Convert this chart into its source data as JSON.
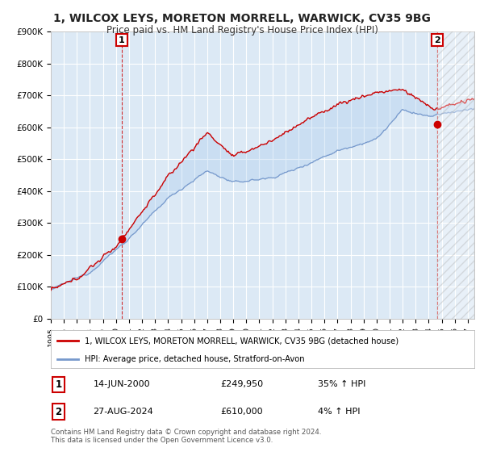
{
  "title": "1, WILCOX LEYS, MORETON MORRELL, WARWICK, CV35 9BG",
  "subtitle": "Price paid vs. HM Land Registry's House Price Index (HPI)",
  "ylim": [
    0,
    900000
  ],
  "yticks": [
    0,
    100000,
    200000,
    300000,
    400000,
    500000,
    600000,
    700000,
    800000,
    900000
  ],
  "ytick_labels": [
    "£0",
    "£100K",
    "£200K",
    "£300K",
    "£400K",
    "£500K",
    "£600K",
    "£700K",
    "£800K",
    "£900K"
  ],
  "xlim_start": 1995.0,
  "xlim_end": 2027.5,
  "sale1_date": 2000.45,
  "sale1_price": 249950,
  "sale1_label": "1",
  "sale2_date": 2024.65,
  "sale2_price": 610000,
  "sale2_label": "2",
  "legend_line1": "1, WILCOX LEYS, MORETON MORRELL, WARWICK, CV35 9BG (detached house)",
  "legend_line2": "HPI: Average price, detached house, Stratford-on-Avon",
  "annotation1_num": "1",
  "annotation1_date": "14-JUN-2000",
  "annotation1_price": "£249,950",
  "annotation1_hpi": "35% ↑ HPI",
  "annotation2_num": "2",
  "annotation2_date": "27-AUG-2024",
  "annotation2_price": "£610,000",
  "annotation2_hpi": "4% ↑ HPI",
  "footer": "Contains HM Land Registry data © Crown copyright and database right 2024.\nThis data is licensed under the Open Government Licence v3.0.",
  "red_line_color": "#cc0000",
  "blue_line_color": "#7799cc",
  "plot_bg_color": "#dce9f5",
  "background_color": "#ffffff",
  "grid_color": "#ffffff"
}
